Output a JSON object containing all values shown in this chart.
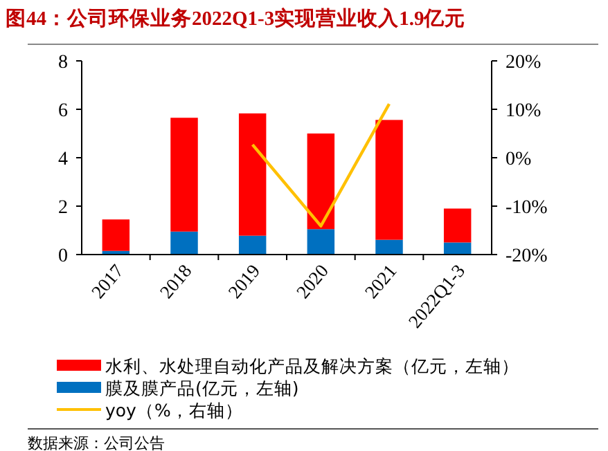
{
  "chart_data": {
    "type": "bar",
    "title": "图44：公司环保业务2022Q1-3实现营业收入1.9亿元",
    "categories": [
      "2017",
      "2018",
      "2019",
      "2020",
      "2021",
      "2022Q1-3"
    ],
    "stacked": true,
    "series": [
      {
        "name": "膜及膜产品(亿元，左轴)",
        "color": "#0070c0",
        "values": [
          0.15,
          0.95,
          0.78,
          1.05,
          0.61,
          0.5
        ]
      },
      {
        "name": "水利、水处理自动化产品及解决方案（亿元，左轴）",
        "color": "#ff0000",
        "values": [
          1.3,
          4.7,
          5.05,
          3.95,
          4.95,
          1.4
        ]
      },
      {
        "name": "yoy（%，右轴）",
        "type": "line",
        "axis": "y2",
        "color": "#ffc000",
        "values": [
          null,
          null,
          2.7,
          -14.1,
          11.1,
          null
        ]
      }
    ],
    "ylim": [
      0,
      8
    ],
    "yticks": [
      0,
      2,
      4,
      6,
      8
    ],
    "y2lim": [
      -20,
      20
    ],
    "y2ticks": [
      {
        "value": -20,
        "label": "-20%"
      },
      {
        "value": -10,
        "label": "-10%"
      },
      {
        "value": 0,
        "label": "0%"
      },
      {
        "value": 10,
        "label": "10%"
      },
      {
        "value": 20,
        "label": "20%"
      }
    ],
    "legend": "bottom",
    "annotations": [
      "数据来源：公司公告"
    ]
  }
}
